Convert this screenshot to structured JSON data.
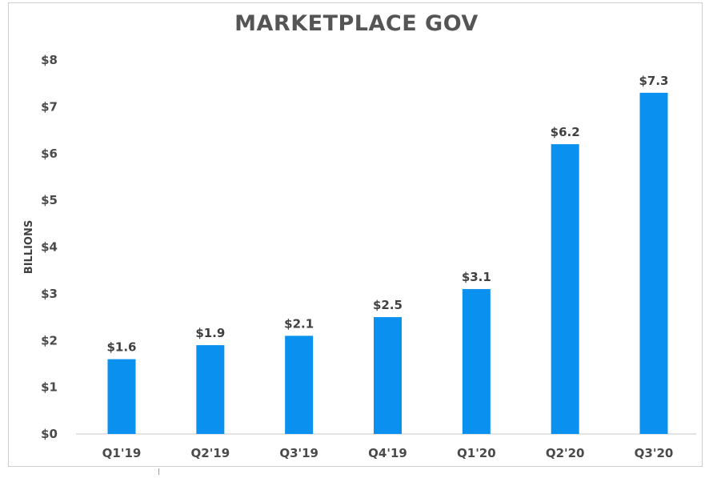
{
  "chart_data": {
    "type": "bar",
    "title": "MARKETPLACE GOV",
    "xlabel": "",
    "ylabel": "BILLIONS",
    "categories": [
      "Q1'19",
      "Q2'19",
      "Q3'19",
      "Q4'19",
      "Q1'20",
      "Q2'20",
      "Q3'20"
    ],
    "values": [
      1.6,
      1.9,
      2.1,
      2.5,
      3.1,
      6.2,
      7.3
    ],
    "value_labels": [
      "$1.6",
      "$1.9",
      "$2.1",
      "$2.5",
      "$3.1",
      "$6.2",
      "$7.3"
    ],
    "ylim": [
      0,
      8
    ],
    "y_ticks": [
      0,
      1,
      2,
      3,
      4,
      5,
      6,
      7,
      8
    ],
    "y_tick_labels": [
      "$0",
      "$1",
      "$2",
      "$3",
      "$4",
      "$5",
      "$6",
      "$7",
      "$8"
    ],
    "grid": false,
    "legend": "none",
    "bar_color": "#0a91f0"
  }
}
